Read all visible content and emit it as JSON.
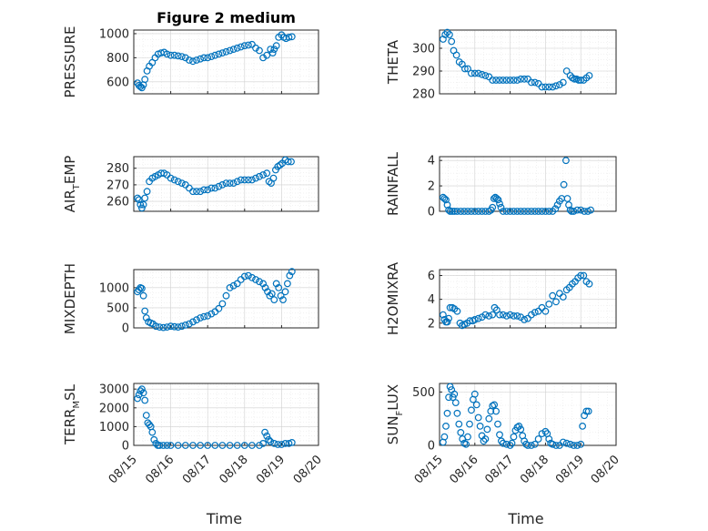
{
  "colors": {
    "marker": "#0072BD",
    "axis": "#262626"
  },
  "chart_data": [
    {
      "type": "scatter",
      "title": "Figure 2 medium",
      "ylabel": "PRESSURE",
      "xlabel": "",
      "ylim": [
        500,
        1030
      ],
      "yticks": [
        600,
        800,
        1000
      ],
      "xlim": [
        0,
        5
      ],
      "x": [
        0.1,
        0.14,
        0.18,
        0.22,
        0.26,
        0.3,
        0.36,
        0.42,
        0.5,
        0.58,
        0.66,
        0.74,
        0.82,
        0.9,
        1.0,
        1.1,
        1.2,
        1.3,
        1.4,
        1.5,
        1.6,
        1.7,
        1.8,
        1.9,
        2.0,
        2.1,
        2.2,
        2.3,
        2.4,
        2.5,
        2.6,
        2.7,
        2.8,
        2.9,
        3.0,
        3.1,
        3.2,
        3.3,
        3.4,
        3.5,
        3.6,
        3.7,
        3.76,
        3.8,
        3.86,
        3.92,
        4.0,
        4.06,
        4.12,
        4.2,
        4.28
      ],
      "y": [
        590,
        570,
        560,
        550,
        575,
        620,
        690,
        730,
        760,
        800,
        830,
        840,
        845,
        830,
        820,
        820,
        815,
        810,
        800,
        780,
        770,
        780,
        790,
        800,
        800,
        810,
        820,
        830,
        840,
        850,
        860,
        870,
        880,
        890,
        900,
        905,
        910,
        880,
        860,
        800,
        820,
        870,
        840,
        870,
        900,
        970,
        990,
        970,
        960,
        970,
        975
      ]
    },
    {
      "type": "scatter",
      "ylabel": "THETA",
      "xlabel": "",
      "ylim": [
        280,
        308
      ],
      "yticks": [
        280,
        290,
        300
      ],
      "xlim": [
        0,
        5
      ],
      "x": [
        0.1,
        0.16,
        0.22,
        0.28,
        0.34,
        0.4,
        0.48,
        0.56,
        0.64,
        0.72,
        0.8,
        0.9,
        1.0,
        1.1,
        1.2,
        1.3,
        1.4,
        1.5,
        1.6,
        1.7,
        1.8,
        1.9,
        2.0,
        2.1,
        2.2,
        2.3,
        2.4,
        2.5,
        2.6,
        2.7,
        2.8,
        2.9,
        3.0,
        3.1,
        3.2,
        3.3,
        3.4,
        3.5,
        3.6,
        3.7,
        3.76,
        3.82,
        3.88,
        3.94,
        4.0,
        4.08,
        4.16,
        4.24
      ],
      "y": [
        304,
        306,
        307,
        306,
        303,
        299,
        297,
        294,
        293,
        291,
        291,
        289,
        289,
        289,
        288.5,
        288,
        287.5,
        286,
        286,
        286,
        286,
        286,
        286,
        286,
        286,
        286.5,
        286.5,
        286.5,
        285,
        285,
        284.5,
        283,
        283,
        283,
        283,
        283.5,
        284,
        285,
        290,
        288,
        287,
        286.5,
        286.5,
        286,
        286,
        286,
        287,
        288
      ]
    },
    {
      "type": "scatter",
      "ylabel": "AIR_TEMP",
      "xlabel": "",
      "ylim": [
        254,
        287
      ],
      "yticks": [
        260,
        270,
        280
      ],
      "xlim": [
        0,
        5
      ],
      "x": [
        0.1,
        0.14,
        0.18,
        0.22,
        0.26,
        0.3,
        0.36,
        0.42,
        0.5,
        0.58,
        0.66,
        0.74,
        0.82,
        0.9,
        1.0,
        1.1,
        1.2,
        1.3,
        1.4,
        1.5,
        1.6,
        1.7,
        1.8,
        1.9,
        2.0,
        2.1,
        2.2,
        2.3,
        2.4,
        2.5,
        2.6,
        2.7,
        2.8,
        2.9,
        3.0,
        3.1,
        3.2,
        3.3,
        3.4,
        3.5,
        3.6,
        3.66,
        3.72,
        3.78,
        3.84,
        3.9,
        3.96,
        4.02,
        4.1,
        4.18,
        4.26
      ],
      "y": [
        262,
        261,
        258,
        256,
        258,
        262,
        266,
        272,
        274,
        275,
        276,
        277,
        277,
        276,
        274,
        273,
        272,
        271,
        270,
        268,
        266,
        266,
        266,
        267,
        267,
        268,
        268,
        269,
        270,
        271,
        271,
        271,
        272,
        273,
        273,
        273,
        273,
        274,
        275,
        276,
        277,
        272,
        271,
        274,
        279,
        281,
        282,
        283,
        285,
        284,
        284
      ]
    },
    {
      "type": "scatter",
      "ylabel": "RAINFALL",
      "xlabel": "",
      "ylim": [
        0,
        4.3
      ],
      "yticks": [
        0,
        2,
        4
      ],
      "xlim": [
        0,
        5
      ],
      "x": [
        0.1,
        0.14,
        0.18,
        0.22,
        0.26,
        0.3,
        0.36,
        0.42,
        0.5,
        0.6,
        0.7,
        0.8,
        0.9,
        1.0,
        1.1,
        1.2,
        1.3,
        1.4,
        1.46,
        1.5,
        1.54,
        1.58,
        1.62,
        1.66,
        1.7,
        1.74,
        1.8,
        1.9,
        2.0,
        2.1,
        2.2,
        2.3,
        2.4,
        2.5,
        2.6,
        2.7,
        2.8,
        2.9,
        3.0,
        3.1,
        3.2,
        3.28,
        3.34,
        3.4,
        3.46,
        3.52,
        3.58,
        3.62,
        3.66,
        3.7,
        3.74,
        3.8,
        3.9,
        4.0,
        4.1,
        4.2,
        4.28
      ],
      "y": [
        1.1,
        1.0,
        0.9,
        0.5,
        0.1,
        0,
        0,
        0,
        0,
        0,
        0,
        0,
        0,
        0,
        0,
        0,
        0,
        0,
        0.1,
        0.3,
        1.0,
        1.1,
        1.0,
        0.9,
        0.6,
        0.3,
        0,
        0,
        0,
        0,
        0,
        0,
        0,
        0,
        0,
        0,
        0,
        0,
        0,
        0,
        0,
        0.2,
        0.5,
        0.8,
        1.0,
        2.1,
        4.0,
        1.0,
        0.5,
        0.1,
        0,
        0,
        0.1,
        0.1,
        0,
        0,
        0.1
      ]
    },
    {
      "type": "scatter",
      "ylabel": "MIXDEPTH",
      "xlabel": "",
      "ylim": [
        0,
        1450
      ],
      "yticks": [
        0,
        500,
        1000
      ],
      "xlim": [
        0,
        5
      ],
      "x": [
        0.1,
        0.14,
        0.18,
        0.22,
        0.26,
        0.3,
        0.34,
        0.4,
        0.46,
        0.52,
        0.6,
        0.7,
        0.8,
        0.9,
        1.0,
        1.1,
        1.2,
        1.3,
        1.4,
        1.5,
        1.6,
        1.7,
        1.8,
        1.9,
        2.0,
        2.1,
        2.2,
        2.3,
        2.4,
        2.5,
        2.6,
        2.7,
        2.8,
        2.9,
        3.0,
        3.1,
        3.2,
        3.3,
        3.4,
        3.5,
        3.56,
        3.62,
        3.68,
        3.74,
        3.8,
        3.86,
        3.92,
        3.98,
        4.04,
        4.1,
        4.16,
        4.22,
        4.28
      ],
      "y": [
        900,
        950,
        1000,
        980,
        800,
        420,
        250,
        150,
        120,
        100,
        40,
        20,
        10,
        20,
        40,
        30,
        20,
        40,
        70,
        100,
        150,
        200,
        250,
        280,
        300,
        350,
        400,
        480,
        600,
        800,
        1000,
        1050,
        1100,
        1200,
        1280,
        1300,
        1250,
        1200,
        1150,
        1100,
        1000,
        900,
        800,
        850,
        700,
        1100,
        1000,
        800,
        700,
        900,
        1100,
        1300,
        1400
      ]
    },
    {
      "type": "scatter",
      "ylabel": "H2OMIXRA",
      "xlabel": "",
      "ylim": [
        1.6,
        6.5
      ],
      "yticks": [
        2,
        4,
        6
      ],
      "xlim": [
        0,
        5
      ],
      "x": [
        0.1,
        0.14,
        0.18,
        0.22,
        0.26,
        0.3,
        0.36,
        0.42,
        0.5,
        0.58,
        0.64,
        0.7,
        0.78,
        0.86,
        0.94,
        1.0,
        1.1,
        1.2,
        1.3,
        1.4,
        1.5,
        1.56,
        1.62,
        1.7,
        1.8,
        1.9,
        2.0,
        2.1,
        2.2,
        2.3,
        2.4,
        2.5,
        2.6,
        2.7,
        2.8,
        2.9,
        3.0,
        3.1,
        3.2,
        3.3,
        3.4,
        3.5,
        3.6,
        3.68,
        3.76,
        3.84,
        3.92,
        4.0,
        4.08,
        4.16,
        4.24
      ],
      "y": [
        2.7,
        2.3,
        2.1,
        2.1,
        2.4,
        3.3,
        3.3,
        3.2,
        3.0,
        2.0,
        1.8,
        1.9,
        2.0,
        2.2,
        2.2,
        2.3,
        2.4,
        2.5,
        2.7,
        2.6,
        2.7,
        3.3,
        3.1,
        2.7,
        2.7,
        2.6,
        2.7,
        2.6,
        2.6,
        2.5,
        2.3,
        2.4,
        2.7,
        2.9,
        3.0,
        3.3,
        3.0,
        3.6,
        4.3,
        3.8,
        4.5,
        4.2,
        4.8,
        5.0,
        5.3,
        5.5,
        5.8,
        6.0,
        6.0,
        5.5,
        5.3
      ]
    },
    {
      "type": "scatter",
      "ylabel": "TERR_MSL",
      "xlabel": "Time",
      "ylim": [
        0,
        3300
      ],
      "yticks": [
        0,
        1000,
        2000,
        3000
      ],
      "xlim": [
        0,
        5
      ],
      "xticks": [
        0,
        1,
        2,
        3,
        4,
        5
      ],
      "xticklabels": [
        "08/15",
        "08/16",
        "08/17",
        "08/18",
        "08/19",
        "08/20"
      ],
      "x": [
        0.1,
        0.14,
        0.18,
        0.22,
        0.26,
        0.3,
        0.34,
        0.38,
        0.42,
        0.46,
        0.5,
        0.55,
        0.6,
        0.65,
        0.7,
        0.8,
        0.9,
        1.0,
        1.2,
        1.4,
        1.6,
        1.8,
        2.0,
        2.2,
        2.4,
        2.6,
        2.8,
        3.0,
        3.2,
        3.4,
        3.5,
        3.55,
        3.6,
        3.65,
        3.7,
        3.8,
        3.9,
        4.0,
        4.1,
        4.2,
        4.28
      ],
      "y": [
        2500,
        2700,
        2900,
        3000,
        2800,
        2400,
        1600,
        1200,
        1100,
        1000,
        700,
        300,
        100,
        0,
        0,
        0,
        0,
        0,
        0,
        0,
        0,
        0,
        0,
        0,
        0,
        0,
        0,
        0,
        0,
        0,
        100,
        700,
        500,
        300,
        200,
        100,
        50,
        50,
        100,
        100,
        150
      ]
    },
    {
      "type": "scatter",
      "ylabel": "SUN_FLUX",
      "xlabel": "Time",
      "ylim": [
        0,
        580
      ],
      "yticks": [
        0,
        500
      ],
      "xlim": [
        0,
        5
      ],
      "xticks": [
        0,
        1,
        2,
        3,
        4,
        5
      ],
      "xticklabels": [
        "08/15",
        "08/16",
        "08/17",
        "08/18",
        "08/19",
        "08/20"
      ],
      "x": [
        0.1,
        0.14,
        0.18,
        0.22,
        0.26,
        0.3,
        0.34,
        0.38,
        0.42,
        0.46,
        0.5,
        0.55,
        0.6,
        0.65,
        0.7,
        0.75,
        0.8,
        0.85,
        0.9,
        0.95,
        1.0,
        1.05,
        1.1,
        1.15,
        1.2,
        1.25,
        1.3,
        1.35,
        1.4,
        1.45,
        1.5,
        1.55,
        1.6,
        1.65,
        1.7,
        1.75,
        1.8,
        1.9,
        2.0,
        2.05,
        2.1,
        2.15,
        2.2,
        2.25,
        2.3,
        2.35,
        2.4,
        2.45,
        2.5,
        2.6,
        2.7,
        2.8,
        2.9,
        3.0,
        3.05,
        3.1,
        3.15,
        3.2,
        3.3,
        3.4,
        3.5,
        3.6,
        3.7,
        3.8,
        3.9,
        4.0,
        4.05,
        4.1,
        4.16,
        4.22
      ],
      "y": [
        30,
        80,
        180,
        300,
        450,
        550,
        520,
        450,
        480,
        400,
        300,
        200,
        120,
        60,
        20,
        10,
        80,
        200,
        330,
        430,
        480,
        380,
        260,
        180,
        90,
        40,
        60,
        150,
        250,
        320,
        370,
        380,
        320,
        200,
        100,
        40,
        20,
        10,
        0,
        20,
        80,
        140,
        170,
        180,
        150,
        90,
        40,
        10,
        0,
        0,
        10,
        60,
        110,
        130,
        110,
        60,
        20,
        10,
        0,
        0,
        30,
        20,
        10,
        0,
        0,
        10,
        180,
        280,
        320,
        320
      ]
    }
  ]
}
